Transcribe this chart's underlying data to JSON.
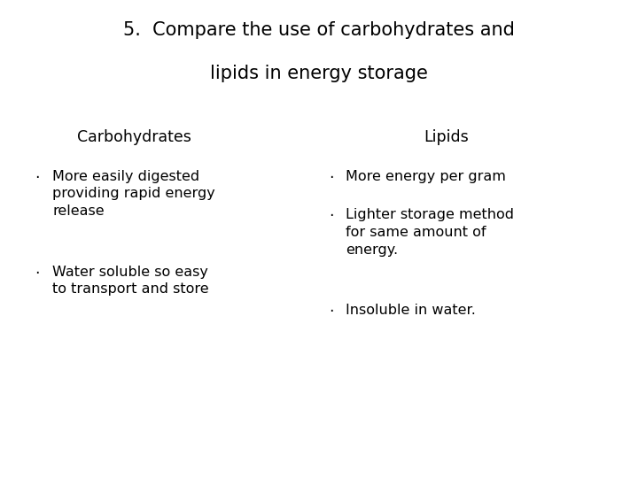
{
  "title_line1": "5.  Compare the use of carbohydrates and",
  "title_line2": "lipids in energy storage",
  "col1_header": "Carbohydrates",
  "col2_header": "Lipids",
  "col1_bullets": [
    "More easily digested\nproviding rapid energy\nrelease",
    "Water soluble so easy\nto transport and store"
  ],
  "col2_bullets": [
    "More energy per gram",
    "Lighter storage method\nfor same amount of\nenergy.",
    "Insoluble in water."
  ],
  "background_color": "#ffffff",
  "text_color": "#000000",
  "title_fontsize": 15,
  "header_fontsize": 12.5,
  "body_fontsize": 11.5,
  "bullet_char": "·",
  "font_family": "DejaVu Sans"
}
